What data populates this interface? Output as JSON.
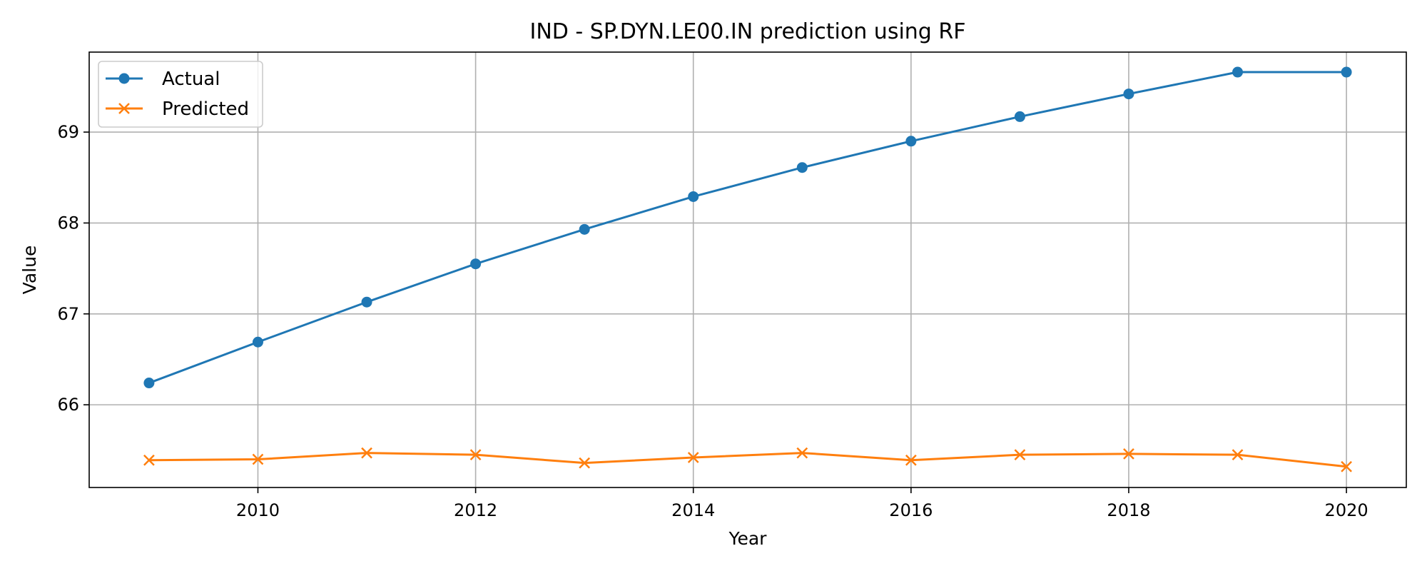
{
  "chart_data": {
    "type": "line",
    "title": "IND - SP.DYN.LE00.IN prediction using RF",
    "xlabel": "Year",
    "ylabel": "Value",
    "x": [
      2009,
      2010,
      2011,
      2012,
      2013,
      2014,
      2015,
      2016,
      2017,
      2018,
      2019,
      2020
    ],
    "xlim": [
      2008.45,
      2020.55
    ],
    "ylim": [
      65.09,
      69.88
    ],
    "xticks": [
      "2010",
      "2012",
      "2014",
      "2016",
      "2018",
      "2020"
    ],
    "yticks": [
      "66",
      "67",
      "68",
      "69"
    ],
    "grid": true,
    "legend_position": "top-left",
    "series": [
      {
        "name": "Actual",
        "color": "#1f77b4",
        "marker": "circle",
        "values": [
          66.24,
          66.69,
          67.13,
          67.55,
          67.93,
          68.29,
          68.61,
          68.9,
          69.17,
          69.42,
          69.66,
          69.66
        ]
      },
      {
        "name": "Predicted",
        "color": "#ff7f0e",
        "marker": "x",
        "values": [
          65.39,
          65.4,
          65.47,
          65.45,
          65.36,
          65.42,
          65.47,
          65.39,
          65.45,
          65.46,
          65.45,
          65.32
        ]
      }
    ]
  }
}
